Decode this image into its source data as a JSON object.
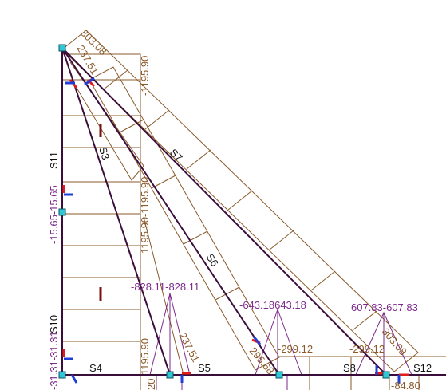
{
  "members": {
    "s3": "S3",
    "s4": "S4",
    "s5": "S5",
    "s6": "S6",
    "s7": "S7",
    "s8": "S8",
    "s10": "S10",
    "s11": "S11",
    "s12": "S12"
  },
  "labels": {
    "top_303": "303.08",
    "top_237": "237.51",
    "left_brown_top": "-1195.90",
    "vertical_upper_purple": "-15.65-15.65",
    "vertical_lower_purple": "-31.31-31.31",
    "s3_brown_pair": "1195.90-1195.90",
    "diag_brown_mid": "1195.90",
    "bottom_left_brown": "1195.90",
    "bottom_left_20": "20",
    "s3_bottom_237": "237.51",
    "purple_828": "-828.11-828.11",
    "purple_643": "-643.18643.18",
    "purple_607": "607.83-607.83",
    "brown_299a": "-299.12",
    "brown_299b": "-299.12",
    "brown_303_right": "303.08",
    "brown_295_cut": "295.68",
    "bottom_84": "-84.80"
  },
  "colors": {
    "member_line": "#3a0d3a",
    "envelope_brown": "#8a5a2b",
    "diagram_purple": "#7d2a8c",
    "node_fill": "#2fc6d6",
    "node_stroke": "#0b5560",
    "axis_red": "#e21b1b",
    "axis_blue": "#1f3fd6",
    "dark_red_mark": "#7a1010"
  }
}
